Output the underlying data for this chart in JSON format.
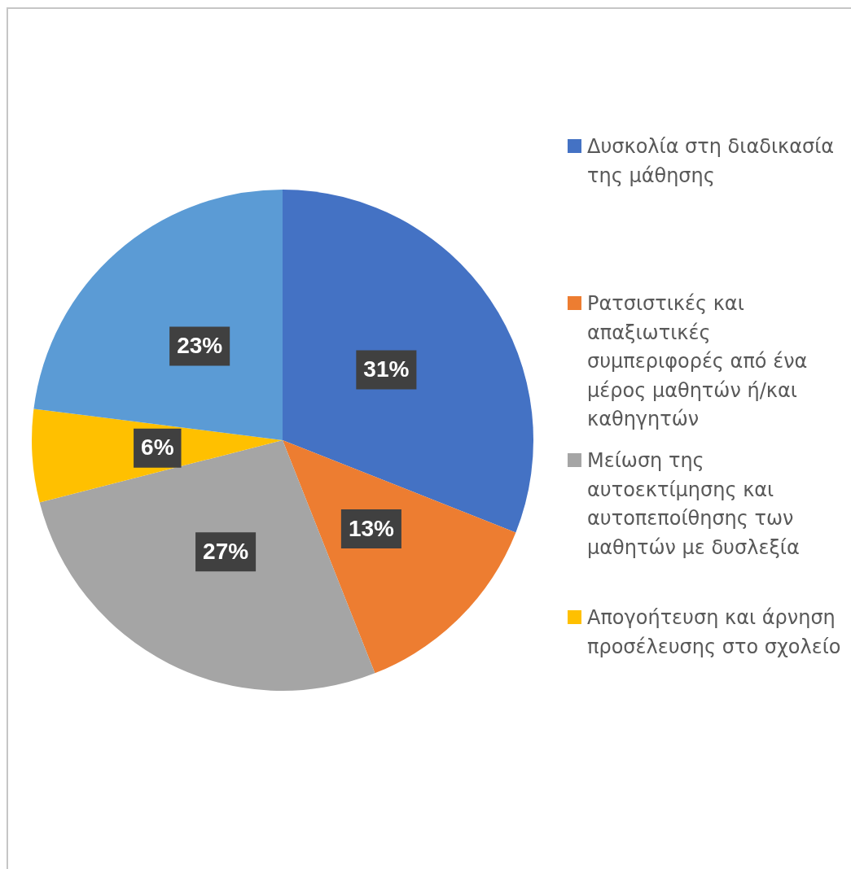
{
  "chart_data": {
    "type": "pie",
    "categories": [
      "Δυσκολία στη διαδικασία της μάθησης",
      "Ρατσιστικές και απαξιωτικές συμπεριφορές από ένα μέρος μαθητών ή/και καθηγητών",
      "Μείωση της αυτοεκτίμησης και αυτοπεποίθησης των μαθητών με δυσλεξία",
      "Απογοήτευση και άρνηση προσέλευσης στο σχολείο",
      null
    ],
    "values": [
      31,
      13,
      27,
      6,
      23
    ],
    "colors": [
      "#4472c4",
      "#ed7d31",
      "#a5a5a5",
      "#ffc000",
      "#5b9bd5"
    ],
    "value_labels": [
      "31%",
      "13%",
      "27%",
      "6%",
      "23%"
    ],
    "legend": "right"
  }
}
